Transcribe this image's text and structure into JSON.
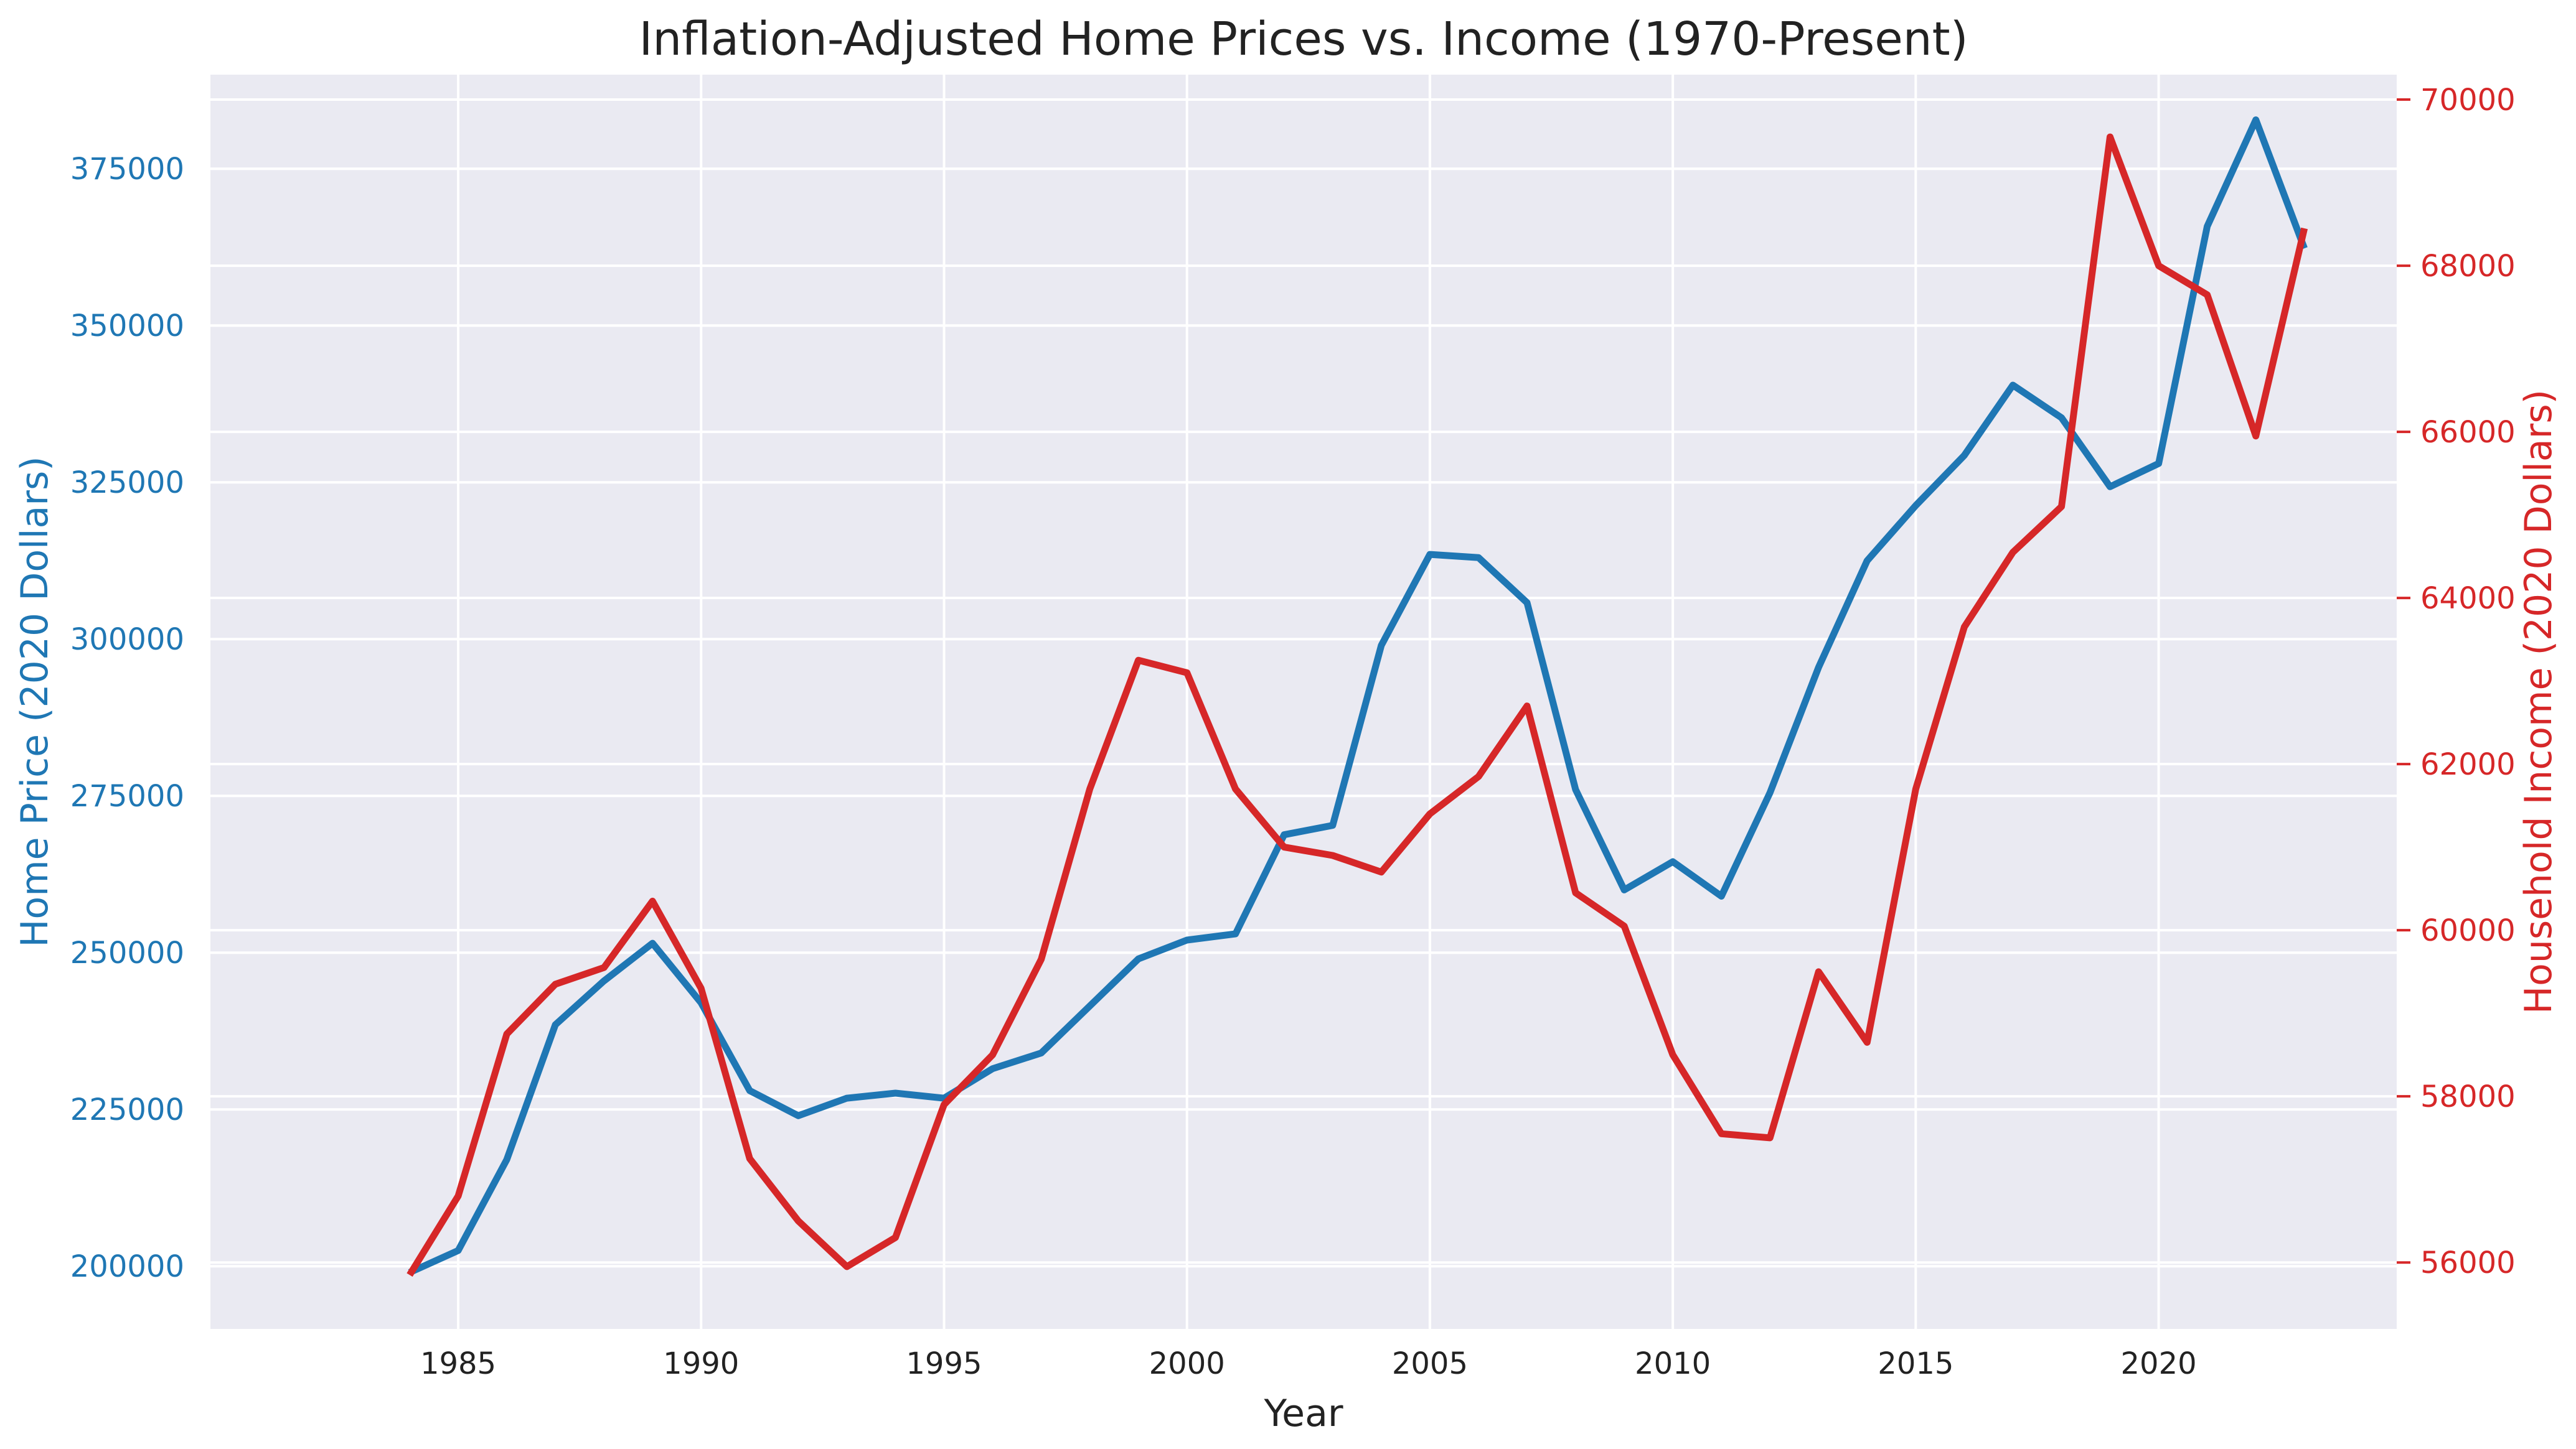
{
  "chart_data": {
    "type": "line",
    "title": "Inflation-Adjusted Home Prices vs. Income (1970-Present)",
    "xlabel": "Year",
    "ylabel": "Home Price (2020 Dollars)",
    "ylabel_right": "Household Income (2020 Dollars)",
    "xlim": [
      1979.9,
      2024.9
    ],
    "ylim": [
      190000,
      390000
    ],
    "ylim_right": [
      55200,
      70300
    ],
    "x_ticks": [
      1985,
      1990,
      1995,
      2000,
      2005,
      2010,
      2015,
      2020
    ],
    "y_ticks": [
      200000,
      225000,
      250000,
      275000,
      300000,
      325000,
      350000,
      375000
    ],
    "y_ticks_right": [
      56000,
      58000,
      60000,
      62000,
      64000,
      66000,
      68000,
      70000
    ],
    "grid": true,
    "background": "#eaeaf2",
    "x": [
      1984,
      1985,
      1986,
      1987,
      1988,
      1989,
      1990,
      1991,
      1992,
      1993,
      1994,
      1995,
      1996,
      1997,
      1998,
      1999,
      2000,
      2001,
      2002,
      2003,
      2004,
      2005,
      2006,
      2007,
      2008,
      2009,
      2010,
      2011,
      2012,
      2013,
      2014,
      2015,
      2016,
      2017,
      2018,
      2019,
      2020,
      2021,
      2022,
      2023
    ],
    "series": [
      {
        "axis": "left",
        "color": "#1f77b4",
        "values": [
          199000,
          202500,
          217000,
          238500,
          245500,
          251500,
          242000,
          228000,
          224000,
          226800,
          227600,
          226800,
          231500,
          234000,
          241500,
          249000,
          252000,
          253000,
          268800,
          270300,
          299000,
          313500,
          313000,
          305800,
          276000,
          260000,
          264500,
          259000,
          275500,
          295500,
          312500,
          321300,
          329300,
          340500,
          335300,
          324300,
          328000,
          365800,
          382800,
          362300
        ]
      },
      {
        "axis": "right",
        "color": "#d62728",
        "values": [
          55850,
          56800,
          58750,
          59350,
          59550,
          60350,
          59300,
          57250,
          56500,
          55950,
          56300,
          57900,
          58500,
          59650,
          61700,
          63250,
          63100,
          61700,
          61000,
          60900,
          60700,
          61400,
          61850,
          62700,
          60450,
          60050,
          58500,
          57550,
          57500,
          59500,
          58650,
          61700,
          63650,
          64550,
          65100,
          69550,
          68000,
          67650,
          65950,
          68450
        ]
      }
    ]
  }
}
